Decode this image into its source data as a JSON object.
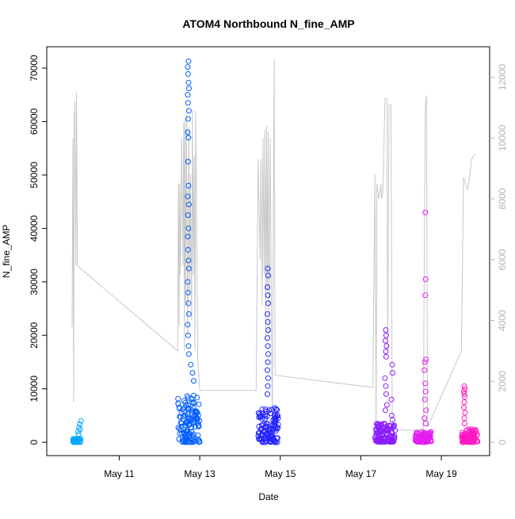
{
  "chart_data": {
    "type": "scatter",
    "title": "ATOM4 Northbound N_fine_AMP",
    "xlabel": "Date",
    "ylabel": "N_fine_AMP",
    "x_ticks": [
      "May 11",
      "May 13",
      "May 15",
      "May 17",
      "May 19"
    ],
    "x_tick_days": [
      11,
      13,
      15,
      17,
      19
    ],
    "xlim_days": [
      9.2,
      20.2
    ],
    "ylim": [
      -2500,
      74000
    ],
    "y_ticks": [
      0,
      10000,
      20000,
      30000,
      40000,
      50000,
      60000,
      70000
    ],
    "y2_ticks": [
      0,
      2000,
      4000,
      6000,
      8000,
      10000,
      12000
    ],
    "y2lim": [
      -440,
      13000
    ],
    "grid": false,
    "legend": "none",
    "series": [
      {
        "color": "#00a8ff",
        "x_start": 9.85,
        "x_end": 10.05,
        "base_max": 700,
        "points": [
          [
            9.98,
            2000
          ],
          [
            10.0,
            2800
          ],
          [
            10.02,
            3400
          ],
          [
            10.05,
            4000
          ],
          [
            10.03,
            2400
          ],
          [
            9.99,
            1500
          ]
        ]
      },
      {
        "color": "#005cff",
        "x_start": 12.45,
        "x_end": 13.0,
        "base_max": 9000,
        "points": [
          [
            12.72,
            71300
          ],
          [
            12.7,
            70200
          ],
          [
            12.71,
            68900
          ],
          [
            12.72,
            67300
          ],
          [
            12.73,
            66200
          ],
          [
            12.7,
            65000
          ],
          [
            12.71,
            63500
          ],
          [
            12.73,
            62000
          ],
          [
            12.71,
            60500
          ],
          [
            12.7,
            58000
          ],
          [
            12.72,
            57000
          ],
          [
            12.71,
            52500
          ],
          [
            12.72,
            48000
          ],
          [
            12.7,
            46000
          ],
          [
            12.73,
            44500
          ],
          [
            12.71,
            42500
          ],
          [
            12.72,
            40000
          ],
          [
            12.7,
            38500
          ],
          [
            12.71,
            36000
          ],
          [
            12.72,
            34000
          ],
          [
            12.73,
            32500
          ],
          [
            12.7,
            30000
          ],
          [
            12.71,
            28000
          ],
          [
            12.72,
            26000
          ],
          [
            12.73,
            24000
          ],
          [
            12.7,
            22000
          ],
          [
            12.71,
            20000
          ],
          [
            12.72,
            18000
          ],
          [
            12.73,
            16500
          ],
          [
            12.78,
            14500
          ],
          [
            12.82,
            13000
          ],
          [
            12.85,
            11500
          ]
        ]
      },
      {
        "color": "#2222ff",
        "x_start": 14.45,
        "x_end": 14.95,
        "base_max": 6500,
        "points": [
          [
            14.69,
            32500
          ],
          [
            14.7,
            31200
          ],
          [
            14.68,
            29000
          ],
          [
            14.69,
            27500
          ],
          [
            14.7,
            26000
          ],
          [
            14.68,
            24000
          ],
          [
            14.69,
            22500
          ],
          [
            14.7,
            21000
          ],
          [
            14.68,
            19500
          ],
          [
            14.69,
            18000
          ],
          [
            14.7,
            16500
          ],
          [
            14.69,
            15000
          ],
          [
            14.68,
            13500
          ],
          [
            14.7,
            12000
          ],
          [
            14.69,
            10500
          ],
          [
            14.68,
            9000
          ]
        ]
      },
      {
        "color": "#8a1cff",
        "x_start": 17.35,
        "x_end": 17.85,
        "base_max": 3500,
        "points": [
          [
            17.62,
            21000
          ],
          [
            17.63,
            20000
          ],
          [
            17.61,
            19000
          ],
          [
            17.64,
            18000
          ],
          [
            17.62,
            17000
          ],
          [
            17.63,
            16000
          ],
          [
            17.78,
            14500
          ],
          [
            17.79,
            13000
          ],
          [
            17.6,
            12000
          ],
          [
            17.62,
            10500
          ],
          [
            17.63,
            9000
          ],
          [
            17.76,
            8000
          ],
          [
            17.65,
            7000
          ],
          [
            17.61,
            6000
          ],
          [
            17.77,
            5000
          ],
          [
            17.79,
            4200
          ]
        ]
      },
      {
        "color": "#e31ef0",
        "x_start": 18.35,
        "x_end": 18.75,
        "base_max": 2000,
        "points": [
          [
            18.6,
            43000
          ],
          [
            18.61,
            30500
          ],
          [
            18.6,
            27500
          ],
          [
            18.62,
            15500
          ],
          [
            18.59,
            15000
          ],
          [
            18.58,
            13500
          ],
          [
            18.6,
            11000
          ],
          [
            18.61,
            9500
          ],
          [
            18.59,
            8000
          ],
          [
            18.62,
            6000
          ],
          [
            18.58,
            4500
          ],
          [
            18.61,
            3500
          ]
        ]
      },
      {
        "color": "#ff17c1",
        "x_start": 19.5,
        "x_end": 19.9,
        "base_max": 2500,
        "points": [
          [
            19.57,
            10500
          ],
          [
            19.58,
            10000
          ],
          [
            19.56,
            9500
          ],
          [
            19.57,
            9000
          ],
          [
            19.58,
            8500
          ],
          [
            19.57,
            7500
          ],
          [
            19.56,
            6500
          ],
          [
            19.59,
            5500
          ],
          [
            19.57,
            4500
          ],
          [
            19.58,
            3500
          ]
        ]
      }
    ],
    "secondary_line": {
      "color": "#c8c8c8",
      "axis": "right",
      "points": [
        [
          9.83,
          3800
        ],
        [
          9.85,
          10000
        ],
        [
          9.87,
          1300
        ],
        [
          9.88,
          10500
        ],
        [
          9.9,
          11200
        ],
        [
          9.92,
          5800
        ],
        [
          9.94,
          11500
        ],
        [
          9.96,
          5800
        ],
        [
          12.45,
          3000
        ],
        [
          12.47,
          8500
        ],
        [
          12.49,
          3800
        ],
        [
          12.5,
          8500
        ],
        [
          12.52,
          5500
        ],
        [
          12.55,
          10000
        ],
        [
          12.58,
          5800
        ],
        [
          12.6,
          10500
        ],
        [
          12.62,
          3000
        ],
        [
          12.63,
          10600
        ],
        [
          12.65,
          4500
        ],
        [
          12.67,
          10800
        ],
        [
          12.7,
          3500
        ],
        [
          12.73,
          10400
        ],
        [
          12.75,
          4800
        ],
        [
          12.77,
          8800
        ],
        [
          12.8,
          4000
        ],
        [
          12.82,
          10900
        ],
        [
          12.84,
          5500
        ],
        [
          12.86,
          9400
        ],
        [
          12.88,
          3000
        ],
        [
          12.9,
          10900
        ],
        [
          12.95,
          2700
        ],
        [
          13.0,
          1700
        ],
        [
          14.4,
          1700
        ],
        [
          14.45,
          9300
        ],
        [
          14.5,
          6000
        ],
        [
          14.52,
          9300
        ],
        [
          14.55,
          4500
        ],
        [
          14.57,
          10000
        ],
        [
          14.6,
          5500
        ],
        [
          14.62,
          10300
        ],
        [
          14.64,
          3500
        ],
        [
          14.66,
          10400
        ],
        [
          14.68,
          5000
        ],
        [
          14.7,
          10200
        ],
        [
          14.72,
          3500
        ],
        [
          14.75,
          10000
        ],
        [
          14.8,
          500
        ],
        [
          14.85,
          12600
        ],
        [
          14.87,
          2200
        ],
        [
          17.3,
          1800
        ],
        [
          17.35,
          8800
        ],
        [
          17.38,
          400
        ],
        [
          17.4,
          8500
        ],
        [
          17.45,
          8000
        ],
        [
          17.5,
          8500
        ],
        [
          17.52,
          8000
        ],
        [
          17.55,
          8200
        ],
        [
          17.6,
          11300
        ],
        [
          17.65,
          11300
        ],
        [
          17.67,
          3000
        ],
        [
          17.7,
          11100
        ],
        [
          17.75,
          11100
        ],
        [
          17.78,
          1000
        ],
        [
          17.8,
          400
        ],
        [
          18.55,
          400
        ],
        [
          18.6,
          10900
        ],
        [
          18.63,
          11400
        ],
        [
          18.66,
          500
        ],
        [
          19.5,
          3000
        ],
        [
          19.55,
          8700
        ],
        [
          19.6,
          8500
        ],
        [
          19.65,
          8300
        ],
        [
          19.7,
          8700
        ],
        [
          19.75,
          9300
        ],
        [
          19.8,
          9400
        ],
        [
          19.85,
          9500
        ]
      ]
    }
  }
}
